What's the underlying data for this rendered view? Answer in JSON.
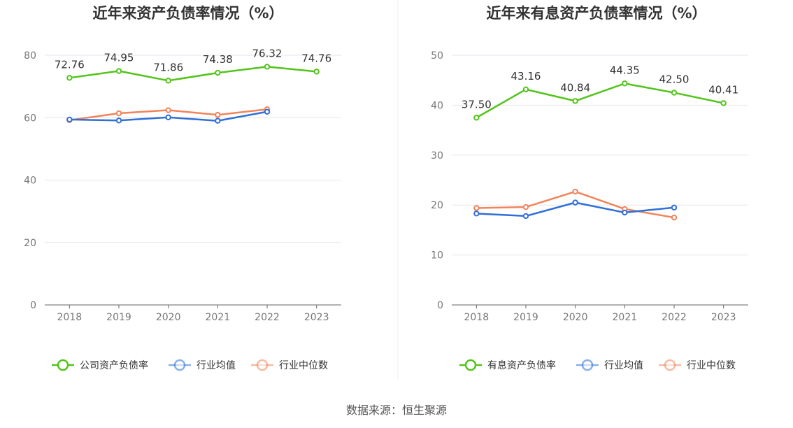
{
  "source_note": "数据来源：恒生聚源",
  "chart_data": [
    {
      "type": "line",
      "title": "近年来资产负债率情况（%）",
      "categories": [
        "2018",
        "2019",
        "2020",
        "2021",
        "2022",
        "2023"
      ],
      "ylim": [
        0,
        80
      ],
      "yticks": [
        0,
        20,
        40,
        60,
        80
      ],
      "grid": true,
      "legend_position": "bottom",
      "series": [
        {
          "name": "公司资产负债率",
          "color": "#52c41a",
          "values": [
            72.76,
            74.95,
            71.86,
            74.38,
            76.32,
            74.76
          ],
          "labels": [
            "72.76",
            "74.95",
            "71.86",
            "74.38",
            "76.32",
            "74.76"
          ]
        },
        {
          "name": "行业均值",
          "color": "#2f6fd8",
          "values": [
            59.4,
            59.1,
            60.1,
            59.0,
            61.9,
            null
          ]
        },
        {
          "name": "行业中位数",
          "color": "#f0845a",
          "values": [
            59.2,
            61.4,
            62.4,
            60.9,
            62.7,
            null
          ]
        }
      ]
    },
    {
      "type": "line",
      "title": "近年来有息资产负债率情况（%）",
      "categories": [
        "2018",
        "2019",
        "2020",
        "2021",
        "2022",
        "2023"
      ],
      "ylim": [
        0,
        50
      ],
      "yticks": [
        0,
        10,
        20,
        30,
        40,
        50
      ],
      "grid": true,
      "legend_position": "bottom",
      "series": [
        {
          "name": "有息资产负债率",
          "color": "#52c41a",
          "values": [
            37.5,
            43.16,
            40.84,
            44.35,
            42.5,
            40.41
          ],
          "labels": [
            "37.50",
            "43.16",
            "40.84",
            "44.35",
            "42.50",
            "40.41"
          ]
        },
        {
          "name": "行业均值",
          "color": "#2f6fd8",
          "values": [
            18.3,
            17.8,
            20.5,
            18.5,
            19.5,
            null
          ]
        },
        {
          "name": "行业中位数",
          "color": "#f0845a",
          "values": [
            19.4,
            19.6,
            22.7,
            19.2,
            17.5,
            null
          ]
        }
      ]
    }
  ]
}
